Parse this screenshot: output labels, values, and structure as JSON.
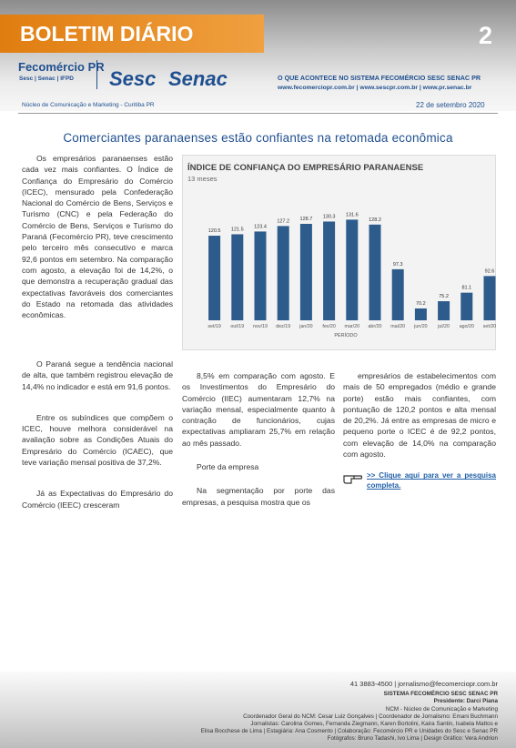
{
  "header": {
    "title": "BOLETIM DIÁRIO",
    "page_number": "2",
    "logos": [
      "Fecomércio PR",
      "Sesc | Senac | IFPD",
      "Sesc",
      "Senac"
    ],
    "tagline": "O QUE ACONTECE NO SISTEMA FECOMÉRCIO SESC SENAC PR",
    "websites": "www.fecomerciopr.com.br | www.sescpr.com.br | www.pr.senac.br",
    "department": "Núcleo de Comunicação e Marketing - Curitiba PR",
    "date": "22 de setembro 2020"
  },
  "article": {
    "headline": "Comerciantes paranaenses estão confiantes na retomada econômica",
    "intro": "Os empresários paranaenses estão cada vez mais confiantes. O Índice de Confiança do Empresário do Comércio (ICEC), mensurado pela Confederação Nacional do Comércio de Bens, Serviços e Turismo (CNC) e pela Federação do Comércio de Bens, Serviços e Turismo do Paraná (Fecomércio PR), teve crescimento pelo terceiro mês consecutivo e marca 92,6 pontos em setembro. Na comparação com agosto, a elevação foi de 14,2%, o que demonstra a recuperação gradual das expectativas favoráveis dos comerciantes do Estado na retomada das atividades econômicas.",
    "column_left": [
      "O Paraná segue a tendência nacional de alta, que também registrou elevação de 14,4% no indicador e está em 91,6 pontos.",
      "Entre os subíndices que compõem o ICEC, houve melhora considerável na avaliação sobre as Condições Atuais do Empresário do Comércio (ICAEC), que teve variação mensal positiva de 37,2%.",
      "Já as Expectativas do Empresário do Comércio (IEEC) cresceram"
    ],
    "column_middle": [
      "8,5% em comparação com agosto. E os Investimentos do Empresário do Comércio (IIEC) aumentaram 12,7% na variação mensal, especialmente quanto à contração de funcionários, cujas expectativas ampliaram 25,7% em relação ao mês passado."
    ],
    "section_heading": "Porte da empresa",
    "column_middle_after": [
      "Na segmentação por porte das empresas, a pesquisa mostra que os"
    ],
    "column_right": [
      "empresários de estabelecimentos com mais de 50 empregados (médio e grande porte) estão mais confiantes, com pontuação de 120,2 pontos e alta mensal de 20,2%. Já entre as empresas de micro e pequeno porte o ICEC é de 92,2 pontos, com elevação de 14,0% na comparação com agosto."
    ],
    "link": ">> Clique aqui para ver a pesquisa completa."
  },
  "chart_data": {
    "type": "bar",
    "title": "ÍNDICE DE CONFIANÇA DO EMPRESÁRIO PARANAENSE",
    "subtitle": "13 meses",
    "categories": [
      "set/19",
      "out/19",
      "nov/19",
      "dez/19",
      "jan/20",
      "fev/20",
      "mar/20",
      "abr/20",
      "mai/20",
      "jun/20",
      "jul/20",
      "ago/20",
      "set/20"
    ],
    "values": [
      120.5,
      121.5,
      123.4,
      127.2,
      128.7,
      130.3,
      131.6,
      128.2,
      97.3,
      70.2,
      75.2,
      81.1,
      92.6
    ],
    "xlabel": "PERÍODO",
    "color": "#2c5b8c",
    "ylim": [
      62,
      135
    ]
  },
  "footer": {
    "lines": [
      "41 3883-4500 | jornalismo@fecomerciopr.com.br",
      "SISTEMA FECOMÉRCIO SESC SENAC PR",
      "Presidente: Darci Piana",
      "NCM - Núcleo de Comunicação e Marketing",
      "Coordenador Geral do NCM: Cesar Luiz Gonçalves | Coordenador de Jornalismo: Emani Buchmann",
      "Jornalistas: Carolina Gomes, Fernanda Ziegmann, Karen Bortolini, Kaira Santin, Isabela Mattos e",
      "Elisa Bocchese de Lima | Estagiária: Ana Cosmento | Colaboração: Fecomércio PR e Unidades do Sesc e Senac PR",
      "Fotógrafos: Bruno Tadashi, Ivo Lima | Design Gráfico: Vera Andrion"
    ]
  }
}
